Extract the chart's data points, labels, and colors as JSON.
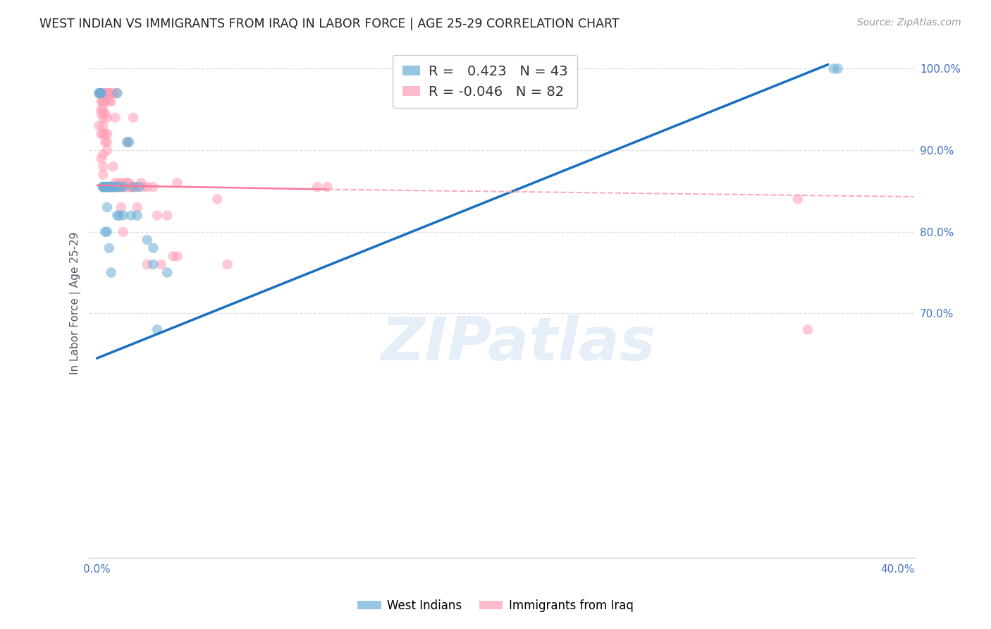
{
  "title": "WEST INDIAN VS IMMIGRANTS FROM IRAQ IN LABOR FORCE | AGE 25-29 CORRELATION CHART",
  "source": "Source: ZipAtlas.com",
  "ylabel": "In Labor Force | Age 25-29",
  "legend_blue_r": " 0.423",
  "legend_blue_n": "43",
  "legend_pink_r": "-0.046",
  "legend_pink_n": "82",
  "legend_blue_label": "West Indians",
  "legend_pink_label": "Immigrants from Iraq",
  "xlim_min": -0.004,
  "xlim_max": 0.408,
  "ylim_min": 0.4,
  "ylim_max": 1.025,
  "xticks": [
    0.0,
    0.1,
    0.2,
    0.3,
    0.4
  ],
  "xtick_labels": [
    "0.0%",
    "",
    "",
    "",
    "40.0%"
  ],
  "yticks": [
    0.7,
    0.8,
    0.9,
    1.0
  ],
  "ytick_labels": [
    "70.0%",
    "80.0%",
    "90.0%",
    "100.0%"
  ],
  "blue_color": "#6AAED6",
  "pink_color": "#FF9EB5",
  "blue_line_color": "#1A6FBF",
  "pink_line_solid_color": "#FF7799",
  "pink_line_dash_color": "#FFAABB",
  "grid_color": "#DDDDEE",
  "bg_color": "#FFFFFF",
  "title_color": "#222222",
  "axis_tick_color": "#4472C4",
  "watermark_text": "ZIPatlas",
  "blue_line_x0": 0.0,
  "blue_line_y0": 0.645,
  "blue_line_x1": 0.365,
  "blue_line_y1": 1.005,
  "pink_line_solid_x0": 0.0,
  "pink_line_solid_y0": 0.857,
  "pink_line_solid_x1": 0.115,
  "pink_line_solid_y1": 0.852,
  "pink_line_dash_x0": 0.115,
  "pink_line_dash_y0": 0.852,
  "pink_line_dash_x1": 0.408,
  "pink_line_dash_y1": 0.843,
  "blue_pts_x": [
    0.001,
    0.001,
    0.002,
    0.002,
    0.003,
    0.003,
    0.003,
    0.003,
    0.004,
    0.004,
    0.004,
    0.005,
    0.005,
    0.005,
    0.005,
    0.006,
    0.006,
    0.006,
    0.007,
    0.007,
    0.008,
    0.008,
    0.009,
    0.01,
    0.01,
    0.01,
    0.011,
    0.012,
    0.013,
    0.013,
    0.015,
    0.016,
    0.017,
    0.018,
    0.02,
    0.021,
    0.025,
    0.028,
    0.028,
    0.03,
    0.035,
    0.368,
    0.37
  ],
  "blue_pts_y": [
    0.97,
    0.97,
    0.97,
    0.97,
    0.855,
    0.855,
    0.855,
    0.855,
    0.855,
    0.855,
    0.8,
    0.855,
    0.83,
    0.8,
    0.855,
    0.855,
    0.78,
    0.855,
    0.855,
    0.75,
    0.855,
    0.855,
    0.855,
    0.97,
    0.82,
    0.855,
    0.82,
    0.855,
    0.82,
    0.855,
    0.91,
    0.91,
    0.82,
    0.855,
    0.82,
    0.855,
    0.79,
    0.78,
    0.76,
    0.68,
    0.75,
    1.0,
    1.0
  ],
  "pink_pts_x": [
    0.001,
    0.001,
    0.002,
    0.002,
    0.002,
    0.002,
    0.002,
    0.002,
    0.003,
    0.003,
    0.003,
    0.003,
    0.003,
    0.003,
    0.003,
    0.003,
    0.003,
    0.003,
    0.004,
    0.004,
    0.004,
    0.004,
    0.004,
    0.005,
    0.005,
    0.005,
    0.005,
    0.005,
    0.005,
    0.005,
    0.005,
    0.006,
    0.006,
    0.006,
    0.006,
    0.007,
    0.007,
    0.007,
    0.007,
    0.008,
    0.008,
    0.008,
    0.009,
    0.009,
    0.009,
    0.01,
    0.01,
    0.01,
    0.011,
    0.011,
    0.012,
    0.012,
    0.013,
    0.013,
    0.013,
    0.015,
    0.015,
    0.015,
    0.016,
    0.016,
    0.017,
    0.018,
    0.019,
    0.02,
    0.02,
    0.022,
    0.023,
    0.025,
    0.025,
    0.028,
    0.03,
    0.032,
    0.035,
    0.038,
    0.04,
    0.04,
    0.06,
    0.065,
    0.11,
    0.115,
    0.35,
    0.355
  ],
  "pink_pts_y": [
    0.97,
    0.93,
    0.97,
    0.96,
    0.95,
    0.945,
    0.92,
    0.89,
    0.97,
    0.96,
    0.96,
    0.95,
    0.94,
    0.93,
    0.92,
    0.895,
    0.88,
    0.87,
    0.97,
    0.96,
    0.945,
    0.92,
    0.91,
    0.97,
    0.97,
    0.965,
    0.94,
    0.92,
    0.91,
    0.9,
    0.855,
    0.97,
    0.96,
    0.855,
    0.855,
    0.97,
    0.96,
    0.855,
    0.855,
    0.97,
    0.88,
    0.855,
    0.94,
    0.86,
    0.855,
    0.97,
    0.855,
    0.855,
    0.86,
    0.855,
    0.855,
    0.83,
    0.86,
    0.855,
    0.8,
    0.91,
    0.86,
    0.855,
    0.86,
    0.855,
    0.855,
    0.94,
    0.855,
    0.855,
    0.83,
    0.86,
    0.855,
    0.855,
    0.76,
    0.855,
    0.82,
    0.76,
    0.82,
    0.77,
    0.86,
    0.77,
    0.84,
    0.76,
    0.855,
    0.855,
    0.84,
    0.68
  ]
}
